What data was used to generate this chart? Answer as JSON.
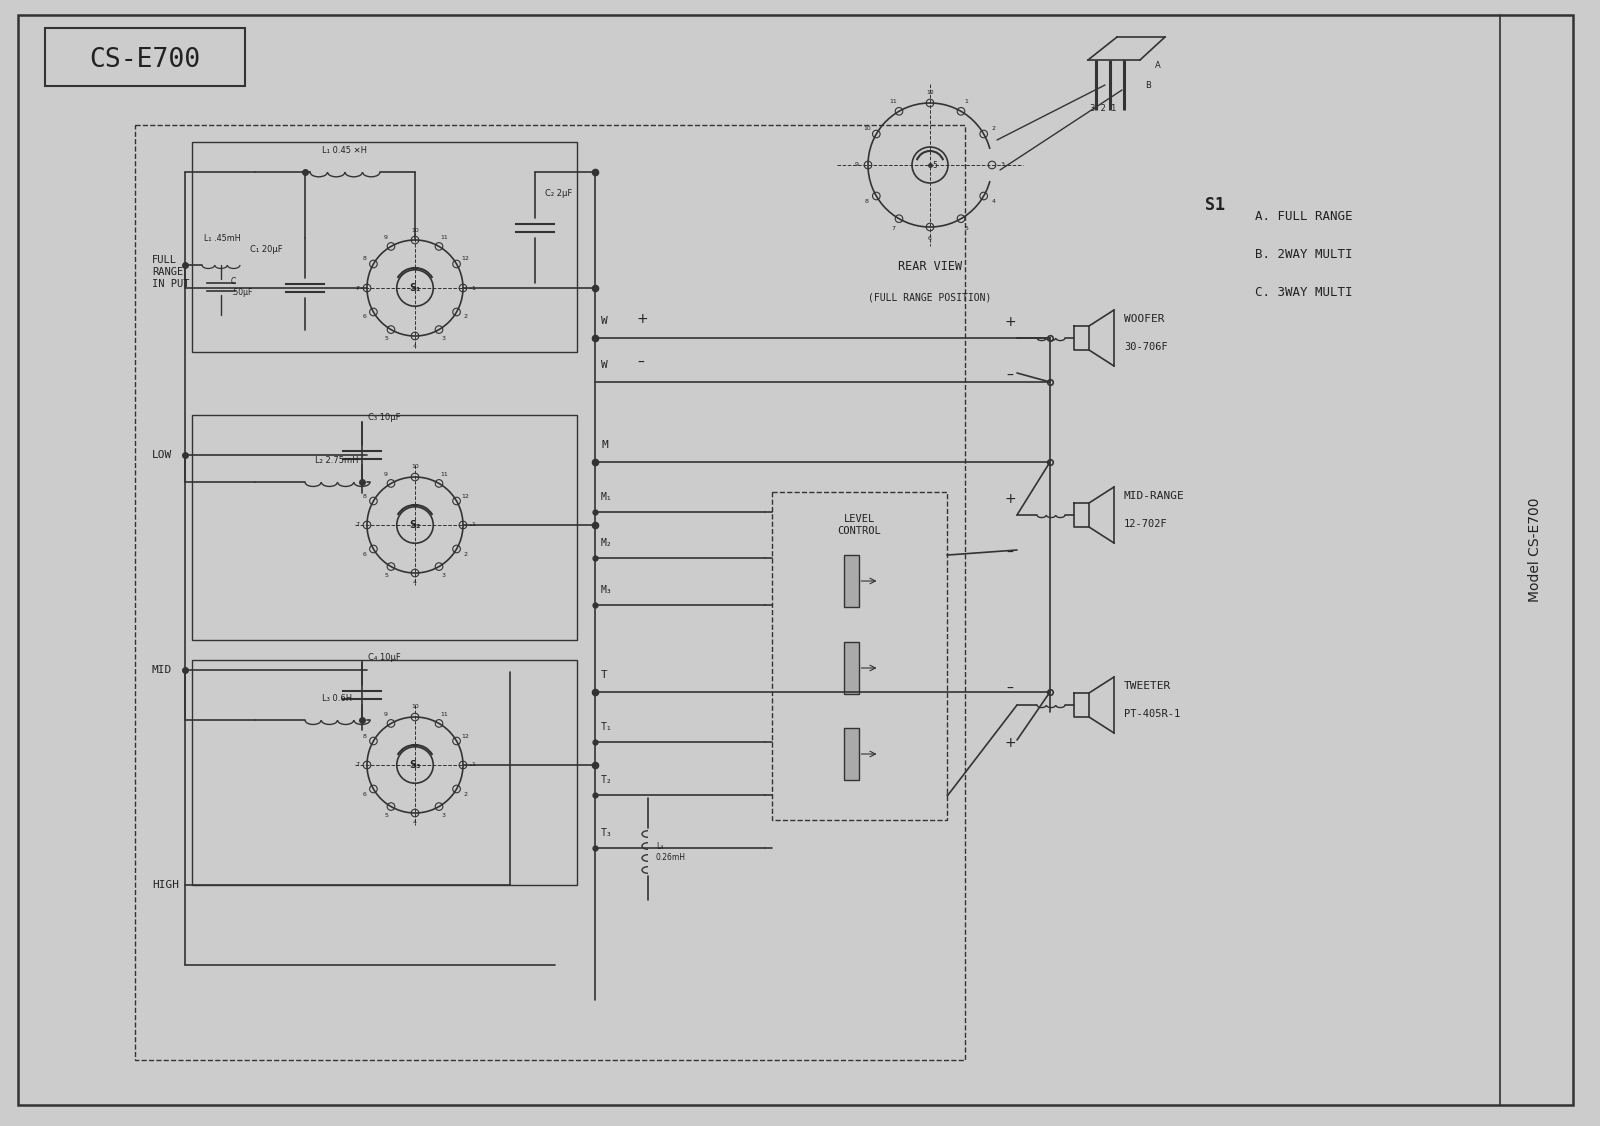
{
  "title": "CS-E700",
  "model_text": "Model CS-E700",
  "background_color": "#cccccc",
  "line_color": "#333333",
  "text_color": "#222222",
  "s1_options": [
    "A. FULL RANGE",
    "B. 2WAY MULTI",
    "C. 3WAY MULTI"
  ],
  "s1_label": "S1",
  "rear_view_label": "REAR VIEW",
  "rear_view_sub": "(FULL RANGE POSITION)",
  "woofer_label": "WOOFER",
  "woofer_model": "30-706F",
  "midrange_label": "MID-RANGE",
  "midrange_model": "12-702F",
  "tweeter_label": "TWEETER",
  "tweeter_model": "PT-405R-1",
  "level_control": "LEVEL\nCONTROL"
}
